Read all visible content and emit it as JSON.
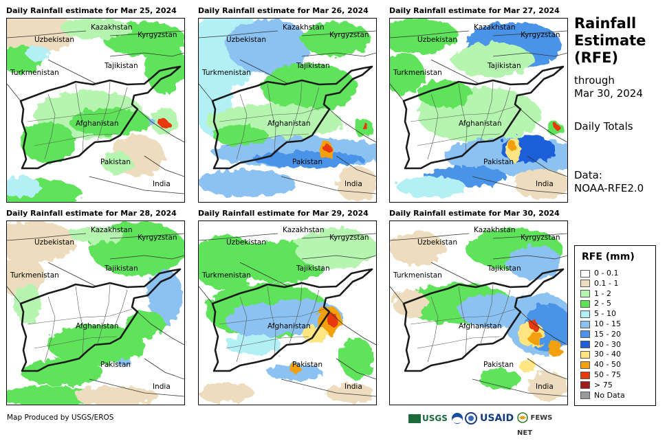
{
  "panels": [
    {
      "title": "Daily Rainfall estimate for Mar 25, 2024"
    },
    {
      "title": "Daily Rainfall estimate for Mar 26, 2024"
    },
    {
      "title": "Daily Rainfall estimate for Mar 27, 2024"
    },
    {
      "title": "Daily Rainfall estimate for Mar 28, 2024"
    },
    {
      "title": "Daily Rainfall estimate for Mar 29, 2024"
    },
    {
      "title": "Daily Rainfall estimate for Mar 30, 2024"
    }
  ],
  "labels": {
    "kazakhstan": "Kazakhstan",
    "kyrgyzstan": "Kyrgyzstan",
    "uzbekistan": "Uzbekistan",
    "tajikistan": "Tajikistan",
    "turkmenistan": "Turkmenistan",
    "afghanistan": "Afghanistan",
    "pakistan": "Pakistan",
    "india": "India"
  },
  "side": {
    "title_line1": "Rainfall",
    "title_line2": "Estimate",
    "title_line3": "(RFE)",
    "through": "through",
    "date": "Mar 30, 2024",
    "totals": "Daily Totals",
    "data_label": "Data:",
    "data_source": "NOAA-RFE2.0"
  },
  "legend": {
    "title": "RFE (mm)",
    "items": [
      {
        "label": "0 - 0.1",
        "color": "#ffffff"
      },
      {
        "label": "0.1 - 1",
        "color": "#eddcbd"
      },
      {
        "label": "1 - 2",
        "color": "#b5f5b0"
      },
      {
        "label": "2 - 5",
        "color": "#5fe35a"
      },
      {
        "label": "5 - 10",
        "color": "#b3f0f5"
      },
      {
        "label": "10 - 15",
        "color": "#8cc2f2"
      },
      {
        "label": "15 - 20",
        "color": "#4a93e8"
      },
      {
        "label": "20 - 30",
        "color": "#1f5fd9"
      },
      {
        "label": "30 - 40",
        "color": "#ffe680"
      },
      {
        "label": "40 - 50",
        "color": "#f2a10f"
      },
      {
        "label": "50 - 75",
        "color": "#e8380c"
      },
      {
        "label": "> 75",
        "color": "#a41b1b"
      },
      {
        "label": "No Data",
        "color": "#999999"
      }
    ]
  },
  "credit": "Map Produced by USGS/EROS",
  "logos": {
    "usgs": "USGS",
    "usaid": "USAID",
    "fews": "FEWS NET"
  }
}
